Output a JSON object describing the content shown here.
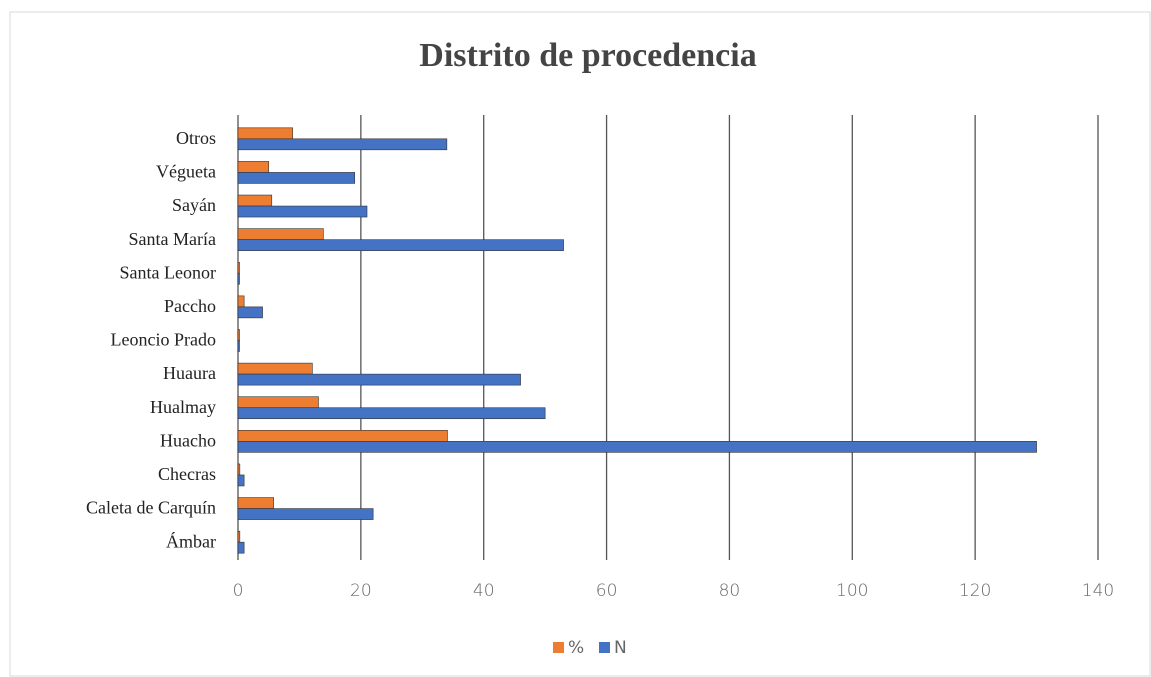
{
  "chart_data": {
    "type": "bar",
    "orientation": "horizontal",
    "title": "Distrito de procedencia",
    "categories": [
      "Ámbar",
      "Caleta de Carquín",
      "Checras",
      "Huacho",
      "Hualmay",
      "Huaura",
      "Leoncio Prado",
      "Paccho",
      "Santa Leonor",
      "Santa María",
      "Sayán",
      "Végueta",
      "Otros"
    ],
    "series": [
      {
        "name": "%",
        "color": "#ed7d31",
        "values": [
          0.3,
          5.8,
          0.3,
          34.1,
          13.1,
          12.1,
          0,
          1.0,
          0,
          13.9,
          5.5,
          5.0,
          8.9
        ]
      },
      {
        "name": "N",
        "color": "#4472c4",
        "values": [
          1,
          22,
          1,
          130,
          50,
          46,
          0,
          4,
          0,
          53,
          21,
          19,
          34
        ]
      }
    ],
    "xlim": [
      0,
      140
    ],
    "xticks": [
      0,
      20,
      40,
      60,
      80,
      100,
      120,
      140
    ],
    "grid": true,
    "legend": "bottom"
  }
}
